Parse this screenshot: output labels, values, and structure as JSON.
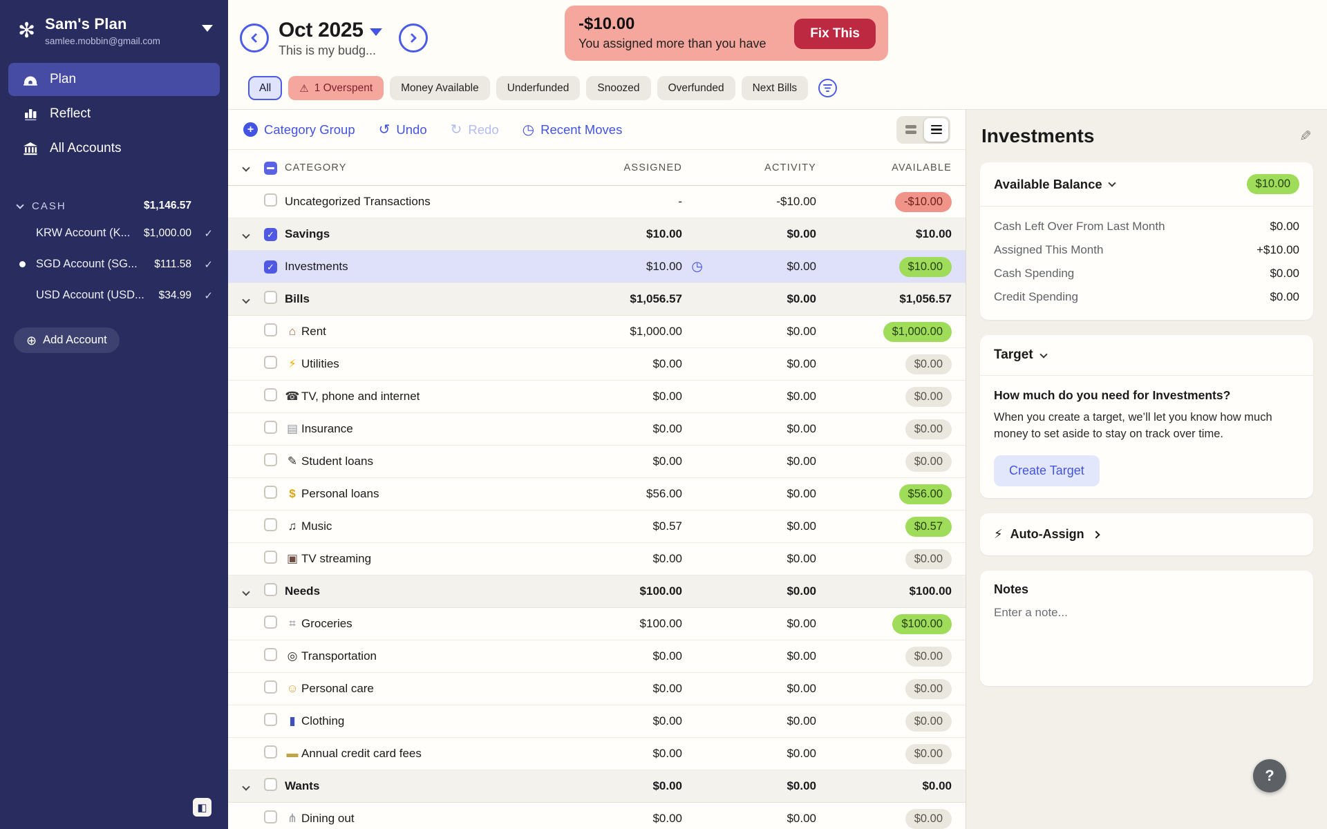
{
  "sidebar": {
    "plan_name": "Sam's Plan",
    "email": "samlee.mobbin@gmail.com",
    "nav": [
      {
        "label": "Plan",
        "active": true
      },
      {
        "label": "Reflect",
        "active": false
      },
      {
        "label": "All Accounts",
        "active": false
      }
    ],
    "cash_group": {
      "label": "CASH",
      "total": "$1,146.57"
    },
    "accounts": [
      {
        "name": "KRW Account (K...",
        "amount": "$1,000.00",
        "checked": true,
        "dot": false
      },
      {
        "name": "SGD Account (SG...",
        "amount": "$111.58",
        "checked": true,
        "dot": true
      },
      {
        "name": "USD Account (USD...",
        "amount": "$34.99",
        "checked": true,
        "dot": false
      }
    ],
    "add_account_label": "Add Account"
  },
  "header": {
    "month": "Oct 2025",
    "subtitle": "This is my budg...",
    "alert": {
      "amount": "-$10.00",
      "message": "You assigned more than you have",
      "button_label": "Fix This"
    }
  },
  "filters": {
    "pills": [
      {
        "label": "All",
        "style": "selected"
      },
      {
        "label": "1 Overspent",
        "style": "overspent",
        "icon": "warning"
      },
      {
        "label": "Money Available",
        "style": "neutral"
      },
      {
        "label": "Underfunded",
        "style": "neutral"
      },
      {
        "label": "Snoozed",
        "style": "neutral"
      },
      {
        "label": "Overfunded",
        "style": "neutral"
      },
      {
        "label": "Next Bills",
        "style": "neutral"
      }
    ]
  },
  "toolbar": {
    "category_group": "Category Group",
    "undo": "Undo",
    "redo": "Redo",
    "recent_moves": "Recent Moves"
  },
  "table": {
    "columns": [
      "CATEGORY",
      "ASSIGNED",
      "ACTIVITY",
      "AVAILABLE"
    ],
    "rows": [
      {
        "type": "item",
        "name": "Uncategorized Transactions",
        "assigned": "-",
        "activity": "-$10.00",
        "available": "-$10.00",
        "available_style": "red",
        "checked": false
      },
      {
        "type": "group",
        "name": "Savings",
        "assigned": "$10.00",
        "activity": "$0.00",
        "available": "$10.00",
        "available_style": "plain",
        "checked": true
      },
      {
        "type": "item",
        "name": "Investments",
        "assigned": "$10.00",
        "activity": "$0.00",
        "available": "$10.00",
        "available_style": "green",
        "checked": true,
        "selected": true,
        "clock": true
      },
      {
        "type": "group",
        "name": "Bills",
        "assigned": "$1,056.57",
        "activity": "$0.00",
        "available": "$1,056.57",
        "available_style": "plain",
        "checked": false
      },
      {
        "type": "item",
        "icon": "⌂",
        "icon_name": "house-icon",
        "icon_color": "#b3593b",
        "name": "Rent",
        "assigned": "$1,000.00",
        "activity": "$0.00",
        "available": "$1,000.00",
        "available_style": "green",
        "checked": false
      },
      {
        "type": "item",
        "icon": "⚡",
        "icon_name": "lightning-icon",
        "icon_color": "#f2b200",
        "name": "Utilities",
        "assigned": "$0.00",
        "activity": "$0.00",
        "available": "$0.00",
        "available_style": "gray",
        "checked": false
      },
      {
        "type": "item",
        "icon": "☎",
        "icon_name": "phone-icon",
        "icon_color": "#3a3a3a",
        "name": "TV, phone and internet",
        "assigned": "$0.00",
        "activity": "$0.00",
        "available": "$0.00",
        "available_style": "gray",
        "checked": false
      },
      {
        "type": "item",
        "icon": "▤",
        "icon_name": "document-icon",
        "icon_color": "#8f959c",
        "name": "Insurance",
        "assigned": "$0.00",
        "activity": "$0.00",
        "available": "$0.00",
        "available_style": "gray",
        "checked": false
      },
      {
        "type": "item",
        "icon": "✎",
        "icon_name": "graduation-cap-icon",
        "icon_color": "#2f2f2f",
        "name": "Student loans",
        "assigned": "$0.00",
        "activity": "$0.00",
        "available": "$0.00",
        "available_style": "gray",
        "checked": false
      },
      {
        "type": "item",
        "icon": "$",
        "icon_name": "money-bag-icon",
        "icon_color": "#d9a514",
        "name": "Personal loans",
        "assigned": "$56.00",
        "activity": "$0.00",
        "available": "$56.00",
        "available_style": "green",
        "checked": false
      },
      {
        "type": "item",
        "icon": "♫",
        "icon_name": "music-note-icon",
        "icon_color": "#2f2f2f",
        "name": "Music",
        "assigned": "$0.57",
        "activity": "$0.00",
        "available": "$0.57",
        "available_style": "green",
        "checked": false
      },
      {
        "type": "item",
        "icon": "▣",
        "icon_name": "tv-icon",
        "icon_color": "#6d4c41",
        "name": "TV streaming",
        "assigned": "$0.00",
        "activity": "$0.00",
        "available": "$0.00",
        "available_style": "gray",
        "checked": false
      },
      {
        "type": "group",
        "name": "Needs",
        "assigned": "$100.00",
        "activity": "$0.00",
        "available": "$100.00",
        "available_style": "plain",
        "checked": false
      },
      {
        "type": "item",
        "icon": "⌗",
        "icon_name": "shopping-cart-icon",
        "icon_color": "#8f959c",
        "name": "Groceries",
        "assigned": "$100.00",
        "activity": "$0.00",
        "available": "$100.00",
        "available_style": "green",
        "checked": false
      },
      {
        "type": "item",
        "icon": "◎",
        "icon_name": "wheel-icon",
        "icon_color": "#2f2f2f",
        "name": "Transportation",
        "assigned": "$0.00",
        "activity": "$0.00",
        "available": "$0.00",
        "available_style": "gray",
        "checked": false
      },
      {
        "type": "item",
        "icon": "☺",
        "icon_name": "person-icon",
        "icon_color": "#e0a23f",
        "name": "Personal care",
        "assigned": "$0.00",
        "activity": "$0.00",
        "available": "$0.00",
        "available_style": "gray",
        "checked": false
      },
      {
        "type": "item",
        "icon": "▮",
        "icon_name": "jeans-icon",
        "icon_color": "#3f51b5",
        "name": "Clothing",
        "assigned": "$0.00",
        "activity": "$0.00",
        "available": "$0.00",
        "available_style": "gray",
        "checked": false
      },
      {
        "type": "item",
        "icon": "▬",
        "icon_name": "credit-card-icon",
        "icon_color": "#bfa44a",
        "name": "Annual credit card fees",
        "assigned": "$0.00",
        "activity": "$0.00",
        "available": "$0.00",
        "available_style": "gray",
        "checked": false
      },
      {
        "type": "group",
        "name": "Wants",
        "assigned": "$0.00",
        "activity": "$0.00",
        "available": "$0.00",
        "available_style": "plain",
        "checked": false
      },
      {
        "type": "item",
        "icon": "⋔",
        "icon_name": "dining-icon",
        "icon_color": "#8f959c",
        "name": "Dining out",
        "assigned": "$0.00",
        "activity": "$0.00",
        "available": "$0.00",
        "available_style": "gray",
        "checked": false
      }
    ]
  },
  "inspector": {
    "title": "Investments",
    "available_balance": {
      "label": "Available Balance",
      "value": "$10.00"
    },
    "breakdown": [
      {
        "label": "Cash Left Over From Last Month",
        "value": "$0.00"
      },
      {
        "label": "Assigned This Month",
        "value": "+$10.00"
      },
      {
        "label": "Cash Spending",
        "value": "$0.00"
      },
      {
        "label": "Credit Spending",
        "value": "$0.00"
      }
    ],
    "target": {
      "label": "Target",
      "question": "How much do you need for Investments?",
      "description": "When you create a target, we’ll let you know how much money to set aside to stay on track over time.",
      "button_label": "Create Target"
    },
    "auto_assign_label": "Auto-Assign",
    "notes": {
      "label": "Notes",
      "placeholder": "Enter a note..."
    },
    "help_label": "?"
  },
  "colors": {
    "sidebar_bg": "#292c5e",
    "accent_blue": "#4353e2",
    "alert_salmon": "#f5a79d",
    "fix_red": "#bc2941",
    "green_pill": "#9edc5a",
    "red_pill": "#f0948a",
    "selected_row": "#dfe1fa"
  }
}
